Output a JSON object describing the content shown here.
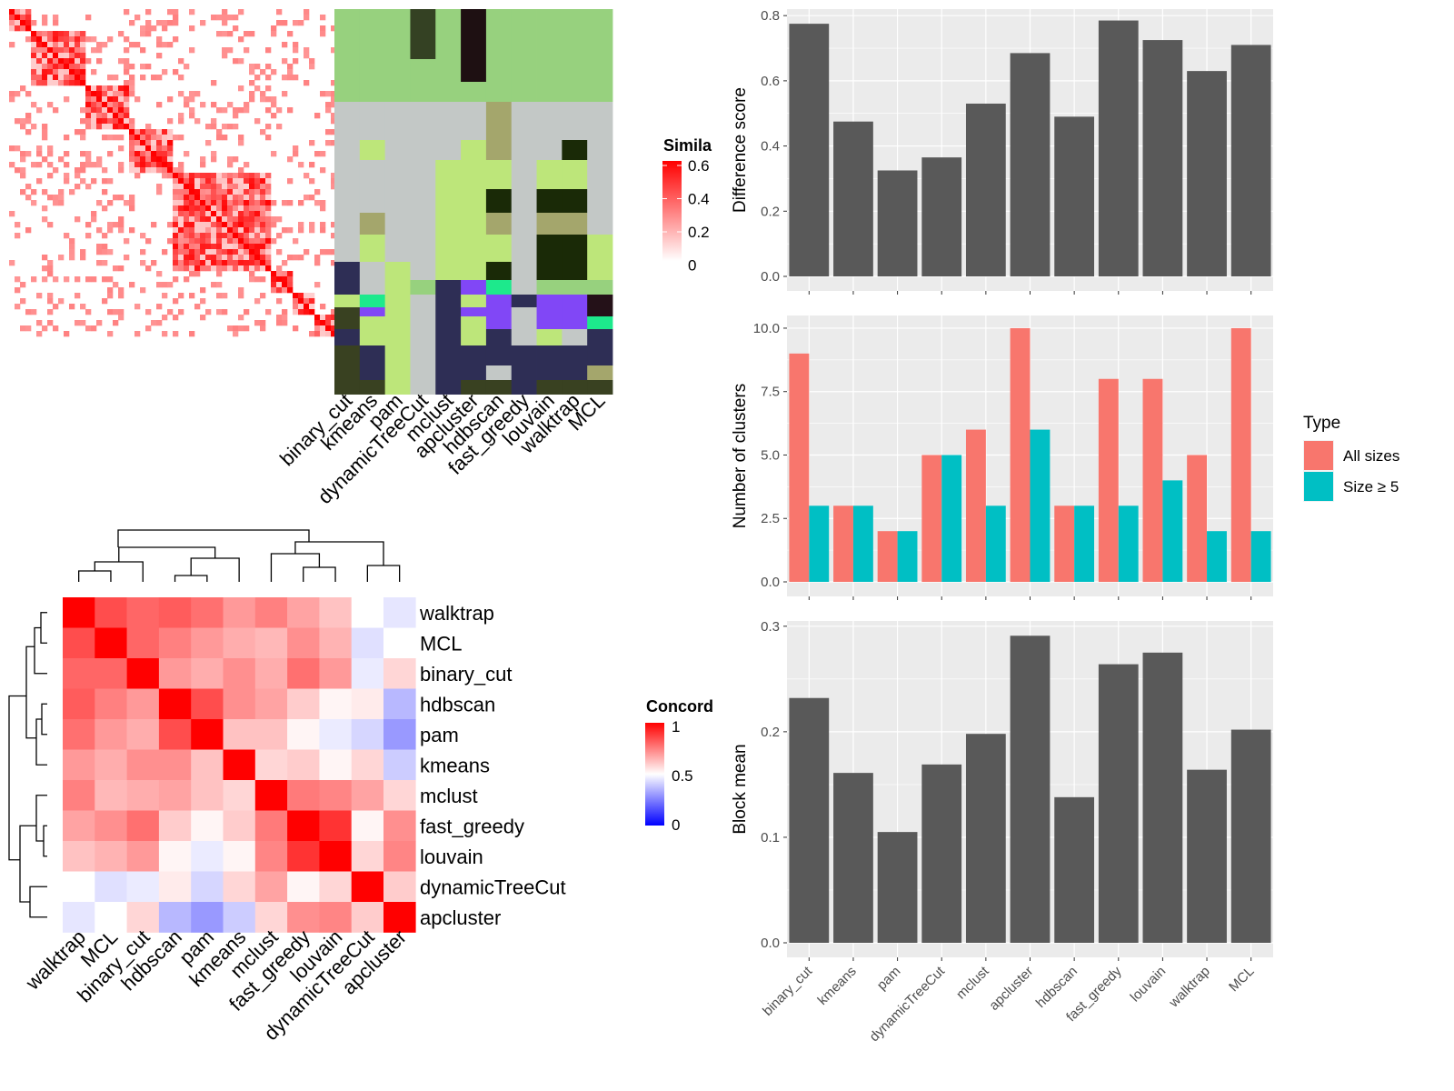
{
  "methods": [
    "binary_cut",
    "kmeans",
    "pam",
    "dynamicTreeCut",
    "mclust",
    "apcluster",
    "hdbscan",
    "fast_greedy",
    "louvain",
    "walktrap",
    "MCL"
  ],
  "chart_data": [
    {
      "type": "heatmap",
      "panel": "similarity-heatmap",
      "legend_title": "Simila",
      "legend_ticks": [
        "0.6",
        "0.4",
        "0.2",
        "0"
      ],
      "value_range": [
        0,
        0.6
      ],
      "n_terms": 60,
      "diagonal_blocks": [
        [
          0,
          4
        ],
        [
          4,
          14
        ],
        [
          14,
          22
        ],
        [
          22,
          30
        ],
        [
          30,
          48
        ],
        [
          48,
          52
        ],
        [
          52,
          56
        ],
        [
          56,
          60
        ]
      ],
      "column_labels": [
        "binary_cut",
        "kmeans",
        "pam",
        "dynamicTreeCut",
        "mclust",
        "apcluster",
        "hdbscan",
        "fast_greedy",
        "louvain",
        "walktrap",
        "MCL"
      ]
    },
    {
      "type": "heatmap",
      "panel": "concordance-heatmap",
      "legend_title": "Concord",
      "legend_ticks": [
        "1",
        "0.5",
        "0"
      ],
      "value_range": [
        0,
        1
      ],
      "row_labels": [
        "walktrap",
        "MCL",
        "binary_cut",
        "hdbscan",
        "pam",
        "kmeans",
        "mclust",
        "fast_greedy",
        "louvain",
        "dynamicTreeCut",
        "apcluster"
      ],
      "column_labels": [
        "walktrap",
        "MCL",
        "binary_cut",
        "hdbscan",
        "pam",
        "kmeans",
        "mclust",
        "fast_greedy",
        "louvain",
        "dynamicTreeCut",
        "apcluster"
      ],
      "values": [
        [
          1.0,
          0.85,
          0.8,
          0.82,
          0.78,
          0.7,
          0.75,
          0.68,
          0.62,
          0.5,
          0.45
        ],
        [
          0.85,
          1.0,
          0.8,
          0.75,
          0.7,
          0.66,
          0.64,
          0.72,
          0.65,
          0.44,
          0.5
        ],
        [
          0.8,
          0.8,
          1.0,
          0.7,
          0.66,
          0.72,
          0.66,
          0.78,
          0.7,
          0.46,
          0.58
        ],
        [
          0.82,
          0.75,
          0.7,
          1.0,
          0.85,
          0.72,
          0.68,
          0.6,
          0.52,
          0.54,
          0.36
        ],
        [
          0.78,
          0.7,
          0.66,
          0.85,
          1.0,
          0.62,
          0.62,
          0.52,
          0.46,
          0.42,
          0.3
        ],
        [
          0.7,
          0.66,
          0.72,
          0.72,
          0.62,
          1.0,
          0.58,
          0.6,
          0.52,
          0.58,
          0.4
        ],
        [
          0.75,
          0.64,
          0.66,
          0.68,
          0.62,
          0.58,
          1.0,
          0.76,
          0.74,
          0.68,
          0.58
        ],
        [
          0.68,
          0.72,
          0.78,
          0.6,
          0.52,
          0.6,
          0.76,
          1.0,
          0.9,
          0.52,
          0.72
        ],
        [
          0.62,
          0.65,
          0.7,
          0.52,
          0.46,
          0.52,
          0.74,
          0.9,
          1.0,
          0.58,
          0.74
        ],
        [
          0.5,
          0.44,
          0.46,
          0.54,
          0.42,
          0.58,
          0.68,
          0.52,
          0.58,
          1.0,
          0.6
        ],
        [
          0.45,
          0.5,
          0.58,
          0.36,
          0.3,
          0.4,
          0.58,
          0.72,
          0.74,
          0.6,
          1.0
        ]
      ]
    },
    {
      "type": "bar",
      "panel": "difference-score",
      "ylabel": "Difference score",
      "ylim": [
        0,
        0.82
      ],
      "yticks": [
        "0.0",
        "0.2",
        "0.4",
        "0.6",
        "0.8"
      ],
      "categories": [
        "binary_cut",
        "kmeans",
        "pam",
        "dynamicTreeCut",
        "mclust",
        "apcluster",
        "hdbscan",
        "fast_greedy",
        "louvain",
        "walktrap",
        "MCL"
      ],
      "values": [
        0.775,
        0.475,
        0.325,
        0.365,
        0.53,
        0.685,
        0.49,
        0.785,
        0.725,
        0.63,
        0.71
      ]
    },
    {
      "type": "bar",
      "panel": "number-of-clusters",
      "ylabel": "Number of clusters",
      "ylim": [
        0,
        10.5
      ],
      "yticks": [
        "0.0",
        "2.5",
        "5.0",
        "7.5",
        "10.0"
      ],
      "legend_title": "Type",
      "categories": [
        "binary_cut",
        "kmeans",
        "pam",
        "dynamicTreeCut",
        "mclust",
        "apcluster",
        "hdbscan",
        "fast_greedy",
        "louvain",
        "walktrap",
        "MCL"
      ],
      "series": [
        {
          "name": "All sizes",
          "color": "#f8766d",
          "values": [
            9,
            3,
            2,
            5,
            6,
            10,
            3,
            8,
            8,
            5,
            10
          ]
        },
        {
          "name": "Size ≥ 5",
          "color": "#00bfc4",
          "values": [
            3,
            3,
            2,
            5,
            3,
            6,
            3,
            3,
            4,
            2,
            2
          ]
        }
      ]
    },
    {
      "type": "bar",
      "panel": "block-mean",
      "ylabel": "Block mean",
      "ylim": [
        0,
        0.305
      ],
      "yticks": [
        "0.0",
        "0.1",
        "0.2",
        "0.3"
      ],
      "categories": [
        "binary_cut",
        "kmeans",
        "pam",
        "dynamicTreeCut",
        "mclust",
        "apcluster",
        "hdbscan",
        "fast_greedy",
        "louvain",
        "walktrap",
        "MCL"
      ],
      "values": [
        0.232,
        0.161,
        0.105,
        0.169,
        0.198,
        0.291,
        0.138,
        0.264,
        0.275,
        0.164,
        0.202
      ]
    }
  ]
}
